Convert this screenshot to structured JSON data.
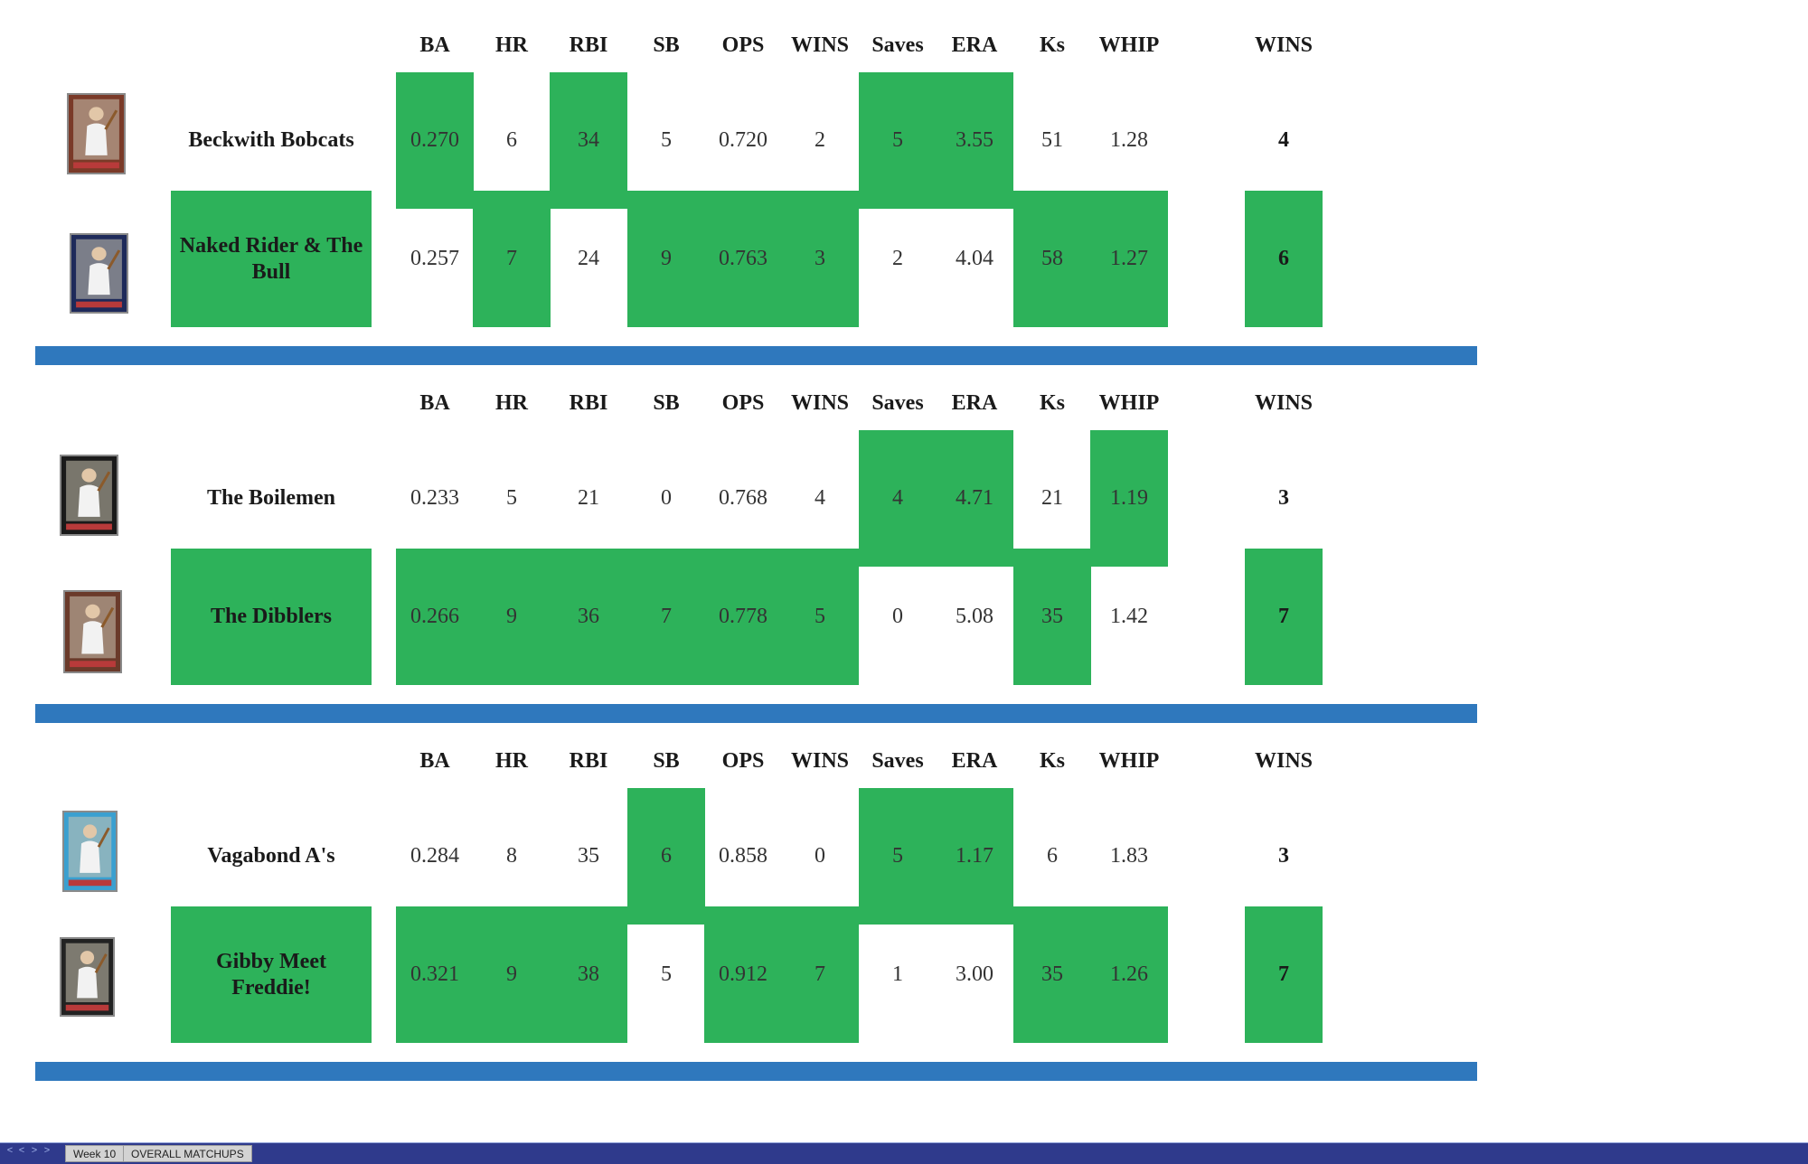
{
  "columns": [
    "BA",
    "HR",
    "RBI",
    "SB",
    "OPS",
    "WINS",
    "Saves",
    "ERA",
    "Ks",
    "WHIP"
  ],
  "total_label": "WINS",
  "matchups": [
    {
      "teams": [
        {
          "name": "Beckwith Bobcats",
          "card_icon": "baseball-card-pitcher-icon",
          "stats": [
            "0.270",
            "6",
            "34",
            "5",
            "0.720",
            "2",
            "5",
            "3.55",
            "51",
            "1.28"
          ],
          "won": [
            true,
            false,
            true,
            false,
            false,
            false,
            true,
            true,
            false,
            false
          ],
          "name_won": false,
          "total": "4",
          "total_won": false
        },
        {
          "name": "Naked Rider & The Bull",
          "card_icon": "baseball-card-batter-icon",
          "stats": [
            "0.257",
            "7",
            "24",
            "9",
            "0.763",
            "3",
            "2",
            "4.04",
            "58",
            "1.27"
          ],
          "won": [
            false,
            true,
            false,
            true,
            true,
            true,
            false,
            false,
            true,
            true
          ],
          "name_won": true,
          "total": "6",
          "total_won": true
        }
      ]
    },
    {
      "teams": [
        {
          "name": "The Boilemen",
          "card_icon": "baseball-card-player-icon",
          "stats": [
            "0.233",
            "5",
            "21",
            "0",
            "0.768",
            "4",
            "4",
            "4.71",
            "21",
            "1.19"
          ],
          "won": [
            false,
            false,
            false,
            false,
            false,
            false,
            true,
            true,
            false,
            true
          ],
          "name_won": false,
          "total": "3",
          "total_won": false
        },
        {
          "name": "The Dibblers",
          "card_icon": "baseball-card-batter-icon",
          "stats": [
            "0.266",
            "9",
            "36",
            "7",
            "0.778",
            "5",
            "0",
            "5.08",
            "35",
            "1.42"
          ],
          "won": [
            true,
            true,
            true,
            true,
            true,
            true,
            false,
            false,
            true,
            false
          ],
          "name_won": true,
          "total": "7",
          "total_won": true
        }
      ]
    },
    {
      "teams": [
        {
          "name": "Vagabond A's",
          "card_icon": "baseball-card-pitcher-icon",
          "stats": [
            "0.284",
            "8",
            "35",
            "6",
            "0.858",
            "0",
            "5",
            "1.17",
            "6",
            "1.83"
          ],
          "won": [
            false,
            false,
            false,
            true,
            false,
            false,
            true,
            true,
            false,
            false
          ],
          "name_won": false,
          "total": "3",
          "total_won": false
        },
        {
          "name": "Gibby Meet Freddie!",
          "card_icon": "baseball-card-batter-icon",
          "stats": [
            "0.321",
            "9",
            "38",
            "5",
            "0.912",
            "7",
            "1",
            "3.00",
            "35",
            "1.26"
          ],
          "won": [
            true,
            true,
            true,
            false,
            true,
            true,
            false,
            false,
            true,
            true
          ],
          "name_won": true,
          "total": "7",
          "total_won": true
        }
      ]
    }
  ],
  "tab_nav": [
    "<",
    "<",
    ">",
    ">"
  ],
  "sheet_tabs": [
    "Week 10",
    "OVERALL MATCHUPS"
  ],
  "colors": {
    "win_fill": "#2db25a",
    "separator": "#2f78bd",
    "tab_bar": "#2f3a8c"
  }
}
